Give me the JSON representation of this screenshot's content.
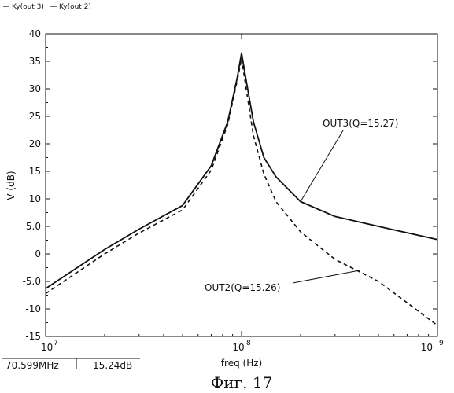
{
  "legend": [
    {
      "label": "Ky(out 3)",
      "color": "#111111",
      "style": "solid"
    },
    {
      "label": "Ky(out 2)",
      "color": "#111111",
      "style": "solid"
    }
  ],
  "readout": {
    "freq": "70.599MHz",
    "value": "15.24dB"
  },
  "caption": "Фиг. 17",
  "chart_data": {
    "type": "line",
    "xlabel": "freq (Hz)",
    "ylabel": "V (dB)",
    "xscale": "log",
    "xlim": [
      10000000,
      1000000000
    ],
    "ylim": [
      -15,
      40
    ],
    "grid": false,
    "x_ticks": [
      {
        "base": "10",
        "exp": "7",
        "value": 10000000
      },
      {
        "base": "10",
        "exp": "8",
        "value": 100000000
      },
      {
        "base": "10",
        "exp": "9",
        "value": 1000000000
      }
    ],
    "y_ticks": [
      {
        "label": "40",
        "value": 40
      },
      {
        "label": "35",
        "value": 35
      },
      {
        "label": "30",
        "value": 30
      },
      {
        "label": "25",
        "value": 25
      },
      {
        "label": "20",
        "value": 20
      },
      {
        "label": "15",
        "value": 15
      },
      {
        "label": "10",
        "value": 10
      },
      {
        "label": "5.0",
        "value": 5
      },
      {
        "label": "0",
        "value": 0
      },
      {
        "label": "-5.0",
        "value": -5
      },
      {
        "label": "-10",
        "value": -10
      },
      {
        "label": "-15",
        "value": -15
      }
    ],
    "series": [
      {
        "name": "Ky(out 3)",
        "dash": "solid",
        "x": [
          10000000,
          20000000,
          30000000,
          50000000,
          70000000,
          85000000,
          95000000,
          100000000,
          105000000,
          115000000,
          130000000,
          150000000,
          200000000,
          300000000,
          500000000,
          1000000000
        ],
        "y": [
          -6.3,
          0.8,
          4.5,
          8.8,
          16,
          24,
          32,
          36.5,
          32,
          24,
          17.5,
          14,
          9.5,
          6.8,
          5,
          2.6
        ]
      },
      {
        "name": "Ky(out 2)",
        "dash": "dashed",
        "x": [
          10000000,
          20000000,
          30000000,
          50000000,
          70000000,
          85000000,
          95000000,
          100000000,
          105000000,
          115000000,
          130000000,
          150000000,
          200000000,
          300000000,
          500000000,
          1000000000
        ],
        "y": [
          -7.2,
          0.0,
          3.8,
          8.0,
          15.2,
          23.5,
          31.5,
          35.5,
          30.5,
          21.5,
          14.5,
          9.5,
          4.0,
          -1.0,
          -5.0,
          -13.0
        ]
      }
    ],
    "annotations": [
      {
        "text": "OUT3(Q=15.27)",
        "series": 0,
        "point_x": 200000000,
        "point_y": 9.5
      },
      {
        "text": "OUT2(Q=15.26)",
        "series": 1,
        "point_x": 400000000,
        "point_y": -3.0
      }
    ]
  }
}
